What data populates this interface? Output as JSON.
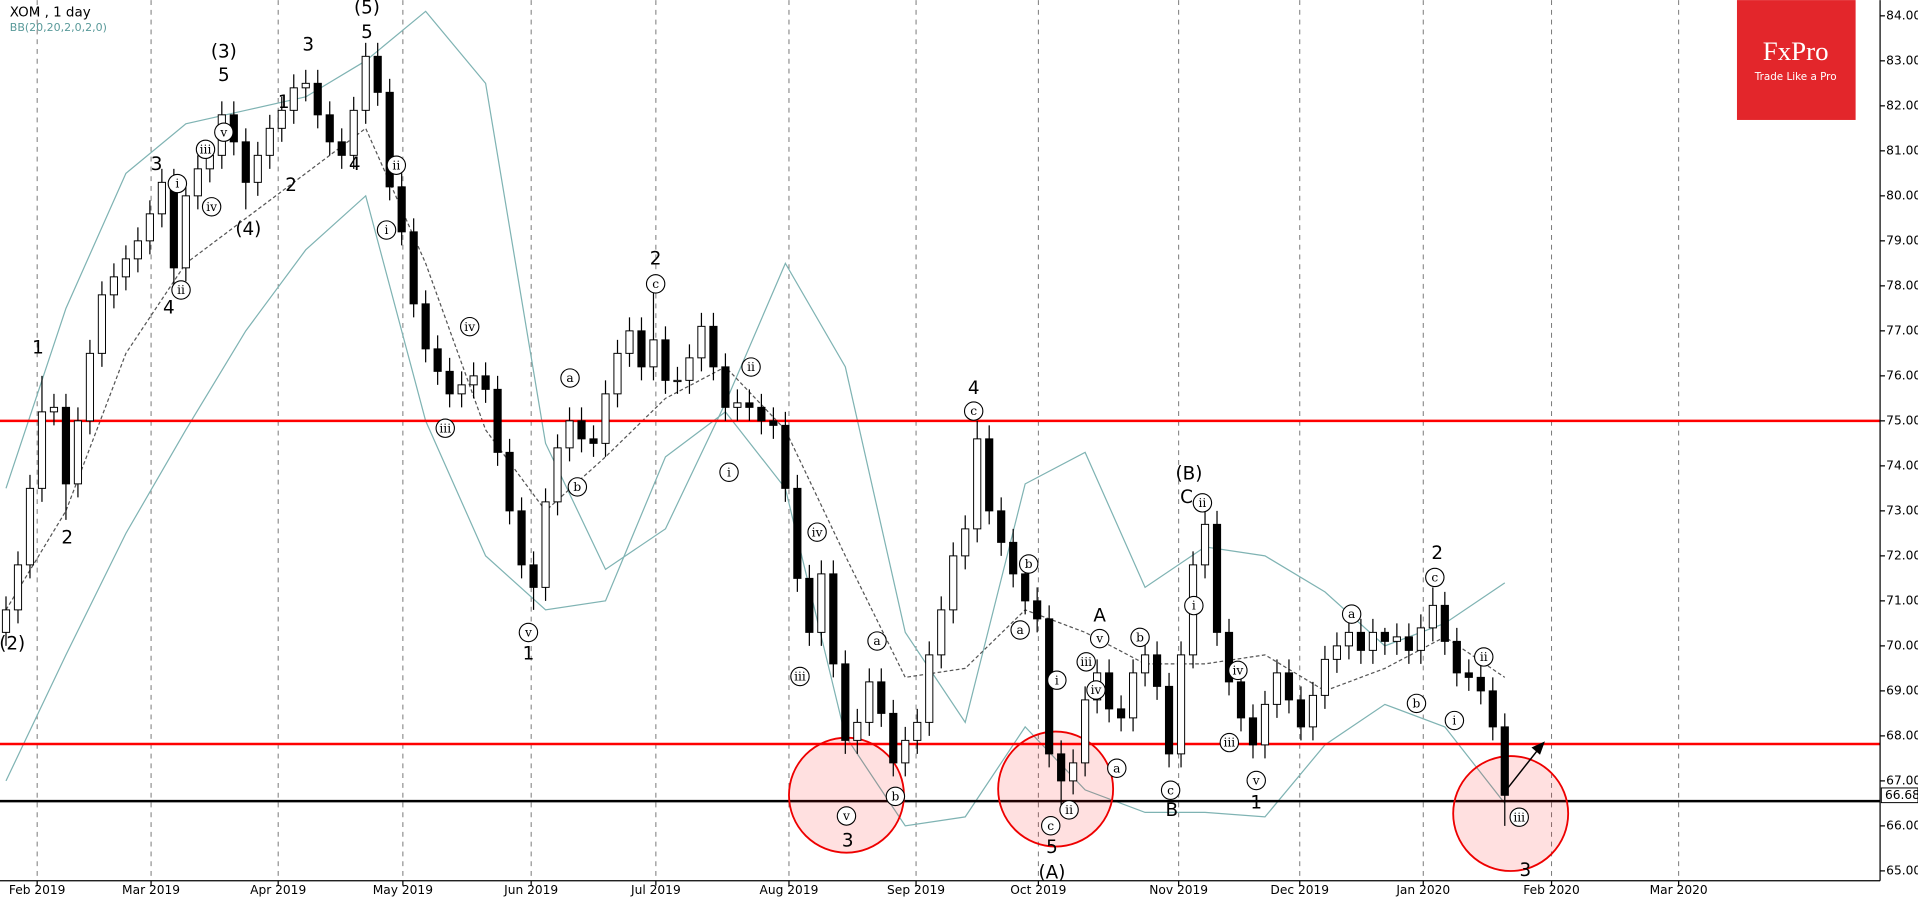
{
  "chart_data": {
    "type": "candlestick",
    "title": "XOM , 1 day",
    "subtitle": "BB(20,20,2,0,2,0)",
    "xlim": [
      -0.5,
      156.3
    ],
    "ylim": [
      64.78,
      84.35
    ],
    "yticks": [
      {
        "value": 65,
        "label": "65.00"
      },
      {
        "value": 66,
        "label": "66.00"
      },
      {
        "value": 67,
        "label": "67.00"
      },
      {
        "value": 68,
        "label": "68.00"
      },
      {
        "value": 69,
        "label": "69.00"
      },
      {
        "value": 70,
        "label": "70.00"
      },
      {
        "value": 71,
        "label": "71.00"
      },
      {
        "value": 72,
        "label": "72.00"
      },
      {
        "value": 73,
        "label": "73.00"
      },
      {
        "value": 74,
        "label": "74.00"
      },
      {
        "value": 75,
        "label": "75.00"
      },
      {
        "value": 76,
        "label": "76.00"
      },
      {
        "value": 77,
        "label": "77.00"
      },
      {
        "value": 78,
        "label": "78.00"
      },
      {
        "value": 79,
        "label": "79.00"
      },
      {
        "value": 80,
        "label": "80.00"
      },
      {
        "value": 81,
        "label": "81.00"
      },
      {
        "value": 82,
        "label": "82.00"
      },
      {
        "value": 83,
        "label": "83.00"
      },
      {
        "value": 84,
        "label": "84.00"
      }
    ],
    "xticks": [
      {
        "value": 2.6,
        "label": "Feb 2019"
      },
      {
        "value": 12.1,
        "label": "Mar 2019"
      },
      {
        "value": 22.7,
        "label": "Apr 2019"
      },
      {
        "value": 33.1,
        "label": "May 2019"
      },
      {
        "value": 43.8,
        "label": "Jun 2019"
      },
      {
        "value": 54.2,
        "label": "Jul 2019"
      },
      {
        "value": 65.3,
        "label": "Aug 2019"
      },
      {
        "value": 75.9,
        "label": "Sep 2019"
      },
      {
        "value": 86.1,
        "label": "Oct 2019"
      },
      {
        "value": 97.8,
        "label": "Nov 2019"
      },
      {
        "value": 107.9,
        "label": "Dec 2019"
      },
      {
        "value": 118.2,
        "label": "Jan 2020"
      },
      {
        "value": 128.9,
        "label": "Feb 2020"
      },
      {
        "value": 139.5,
        "label": "Mar 2020"
      }
    ],
    "grid": true,
    "up_color": "#ffffff",
    "down_color": "#000000",
    "last_price": 66.68,
    "ohlc": [
      [
        70.3,
        71.1,
        70.0,
        70.8
      ],
      [
        70.8,
        72.1,
        70.5,
        71.8
      ],
      [
        71.8,
        73.8,
        71.5,
        73.5
      ],
      [
        73.5,
        76.0,
        73.2,
        75.2
      ],
      [
        75.2,
        75.6,
        74.9,
        75.3
      ],
      [
        75.3,
        75.6,
        72.8,
        73.6
      ],
      [
        73.6,
        75.3,
        73.3,
        75.0
      ],
      [
        75.0,
        76.8,
        74.7,
        76.5
      ],
      [
        76.5,
        78.1,
        76.2,
        77.8
      ],
      [
        77.8,
        78.5,
        77.5,
        78.2
      ],
      [
        78.2,
        78.9,
        77.9,
        78.6
      ],
      [
        78.6,
        79.3,
        78.3,
        79.0
      ],
      [
        79.0,
        79.9,
        78.7,
        79.6
      ],
      [
        79.6,
        80.6,
        79.3,
        80.3
      ],
      [
        80.3,
        80.6,
        77.8,
        78.4
      ],
      [
        78.4,
        80.3,
        78.1,
        80.0
      ],
      [
        80.0,
        80.9,
        79.7,
        80.6
      ],
      [
        80.6,
        81.2,
        80.3,
        80.9
      ],
      [
        80.9,
        82.1,
        80.6,
        81.8
      ],
      [
        81.8,
        82.1,
        80.9,
        81.2
      ],
      [
        81.2,
        81.5,
        79.7,
        80.3
      ],
      [
        80.3,
        81.2,
        80.0,
        80.9
      ],
      [
        80.9,
        81.8,
        80.6,
        81.5
      ],
      [
        81.5,
        82.2,
        81.2,
        81.9
      ],
      [
        81.9,
        82.7,
        81.6,
        82.4
      ],
      [
        82.4,
        82.8,
        82.1,
        82.5
      ],
      [
        82.5,
        82.8,
        81.5,
        81.8
      ],
      [
        81.8,
        82.1,
        80.9,
        81.2
      ],
      [
        81.2,
        81.5,
        80.6,
        80.9
      ],
      [
        80.9,
        82.2,
        80.6,
        81.9
      ],
      [
        81.9,
        83.4,
        81.6,
        83.1
      ],
      [
        83.1,
        83.4,
        82.0,
        82.3
      ],
      [
        82.3,
        82.6,
        79.9,
        80.2
      ],
      [
        80.2,
        80.5,
        78.9,
        79.2
      ],
      [
        79.2,
        79.5,
        77.3,
        77.6
      ],
      [
        77.6,
        77.9,
        76.3,
        76.6
      ],
      [
        76.6,
        76.9,
        75.8,
        76.1
      ],
      [
        76.1,
        76.4,
        75.3,
        75.6
      ],
      [
        75.6,
        76.1,
        75.3,
        75.8
      ],
      [
        75.8,
        76.3,
        75.5,
        76.0
      ],
      [
        76.0,
        76.3,
        75.4,
        75.7
      ],
      [
        75.7,
        76.0,
        74.0,
        74.3
      ],
      [
        74.3,
        74.6,
        72.7,
        73.0
      ],
      [
        73.0,
        73.3,
        71.5,
        71.8
      ],
      [
        71.8,
        72.1,
        70.8,
        71.3
      ],
      [
        71.3,
        73.5,
        71.0,
        73.2
      ],
      [
        73.2,
        74.7,
        72.9,
        74.4
      ],
      [
        74.4,
        75.3,
        74.1,
        75.0
      ],
      [
        75.0,
        75.3,
        74.3,
        74.6
      ],
      [
        74.6,
        74.9,
        74.2,
        74.5
      ],
      [
        74.5,
        75.9,
        74.2,
        75.6
      ],
      [
        75.6,
        76.8,
        75.3,
        76.5
      ],
      [
        76.5,
        77.3,
        76.2,
        77.0
      ],
      [
        77.0,
        77.3,
        75.9,
        76.2
      ],
      [
        76.2,
        78.0,
        75.9,
        76.8
      ],
      [
        76.8,
        77.1,
        75.6,
        75.9
      ],
      [
        75.9,
        76.2,
        75.6,
        75.9
      ],
      [
        75.9,
        76.7,
        75.6,
        76.4
      ],
      [
        76.4,
        77.4,
        76.1,
        77.1
      ],
      [
        77.1,
        77.4,
        75.9,
        76.2
      ],
      [
        76.2,
        76.5,
        75.0,
        75.3
      ],
      [
        75.3,
        75.7,
        75.0,
        75.4
      ],
      [
        75.4,
        75.7,
        75.0,
        75.3
      ],
      [
        75.3,
        75.6,
        74.7,
        75.0
      ],
      [
        75.0,
        75.3,
        74.6,
        74.9
      ],
      [
        74.9,
        75.2,
        73.2,
        73.5
      ],
      [
        73.5,
        73.8,
        71.2,
        71.5
      ],
      [
        71.5,
        71.8,
        70.0,
        70.3
      ],
      [
        70.3,
        71.9,
        70.0,
        71.6
      ],
      [
        71.6,
        71.9,
        69.3,
        69.6
      ],
      [
        69.6,
        69.9,
        67.6,
        67.9
      ],
      [
        67.9,
        68.6,
        67.6,
        68.3
      ],
      [
        68.3,
        69.5,
        68.0,
        69.2
      ],
      [
        69.2,
        69.5,
        68.2,
        68.5
      ],
      [
        68.5,
        68.8,
        67.1,
        67.4
      ],
      [
        67.4,
        68.2,
        67.1,
        67.9
      ],
      [
        67.9,
        68.6,
        67.6,
        68.3
      ],
      [
        68.3,
        70.1,
        68.0,
        69.8
      ],
      [
        69.8,
        71.1,
        69.5,
        70.8
      ],
      [
        70.8,
        72.3,
        70.5,
        72.0
      ],
      [
        72.0,
        72.9,
        71.7,
        72.6
      ],
      [
        72.6,
        75.0,
        72.3,
        74.6
      ],
      [
        74.6,
        74.9,
        72.7,
        73.0
      ],
      [
        73.0,
        73.3,
        72.0,
        72.3
      ],
      [
        72.3,
        72.6,
        71.3,
        71.6
      ],
      [
        71.6,
        71.9,
        70.7,
        71.0
      ],
      [
        71.0,
        71.3,
        70.3,
        70.6
      ],
      [
        70.6,
        70.9,
        67.3,
        67.6
      ],
      [
        67.6,
        67.9,
        66.4,
        67.0
      ],
      [
        67.0,
        67.7,
        66.7,
        67.4
      ],
      [
        67.4,
        69.1,
        67.1,
        68.8
      ],
      [
        68.8,
        69.7,
        68.5,
        69.4
      ],
      [
        69.4,
        69.7,
        68.3,
        68.6
      ],
      [
        68.6,
        68.9,
        68.1,
        68.4
      ],
      [
        68.4,
        69.7,
        68.1,
        69.4
      ],
      [
        69.4,
        70.1,
        69.1,
        69.8
      ],
      [
        69.8,
        70.1,
        68.8,
        69.1
      ],
      [
        69.1,
        69.4,
        67.3,
        67.6
      ],
      [
        67.6,
        70.1,
        67.3,
        69.8
      ],
      [
        69.8,
        72.1,
        69.5,
        71.8
      ],
      [
        71.8,
        73.0,
        71.5,
        72.7
      ],
      [
        72.7,
        73.0,
        70.0,
        70.3
      ],
      [
        70.3,
        70.6,
        68.9,
        69.2
      ],
      [
        69.2,
        69.5,
        68.1,
        68.4
      ],
      [
        68.4,
        68.7,
        67.5,
        67.8
      ],
      [
        67.8,
        69.0,
        67.5,
        68.7
      ],
      [
        68.7,
        69.7,
        68.4,
        69.4
      ],
      [
        69.4,
        69.7,
        68.5,
        68.8
      ],
      [
        68.8,
        69.1,
        67.9,
        68.2
      ],
      [
        68.2,
        69.2,
        67.9,
        68.9
      ],
      [
        68.9,
        70.0,
        68.6,
        69.7
      ],
      [
        69.7,
        70.3,
        69.4,
        70.0
      ],
      [
        70.0,
        70.6,
        69.7,
        70.3
      ],
      [
        70.3,
        70.6,
        69.6,
        69.9
      ],
      [
        69.9,
        70.6,
        69.6,
        70.3
      ],
      [
        70.3,
        70.4,
        69.8,
        70.1
      ],
      [
        70.1,
        70.5,
        69.8,
        70.2
      ],
      [
        70.2,
        70.5,
        69.6,
        69.9
      ],
      [
        69.9,
        70.7,
        69.6,
        70.4
      ],
      [
        70.4,
        71.3,
        70.1,
        70.9
      ],
      [
        70.9,
        71.2,
        69.8,
        70.1
      ],
      [
        70.1,
        70.4,
        69.1,
        69.4
      ],
      [
        69.4,
        69.7,
        69.0,
        69.3
      ],
      [
        69.3,
        69.6,
        68.7,
        69.0
      ],
      [
        69.0,
        69.3,
        67.9,
        68.2
      ],
      [
        68.2,
        68.5,
        66.0,
        66.68
      ]
    ],
    "bands": {
      "x": [
        0,
        5,
        10,
        15,
        20,
        25,
        30,
        35,
        40,
        45,
        50,
        55,
        60,
        65,
        70,
        75,
        80,
        85,
        90,
        95,
        100,
        105,
        110,
        115,
        120,
        125
      ],
      "series": [
        {
          "color": "#7fb3b3",
          "values": [
            73.5,
            77.5,
            80.5,
            81.6,
            81.9,
            82.2,
            83.0,
            84.1,
            82.5,
            74.5,
            71.7,
            72.6,
            75.4,
            78.5,
            76.2,
            70.3,
            68.3,
            73.6,
            74.3,
            71.3,
            72.2,
            72.0,
            71.2,
            70.0,
            70.5,
            71.4
          ]
        },
        {
          "color": "#555555",
          "dashed": true,
          "values": [
            70.8,
            73.0,
            76.5,
            78.5,
            79.5,
            80.5,
            81.5,
            78.5,
            74.8,
            73.0,
            74.2,
            75.5,
            76.2,
            74.8,
            72.0,
            69.3,
            69.5,
            70.8,
            70.3,
            69.6,
            69.6,
            69.8,
            69.0,
            69.5,
            70.2,
            69.3
          ]
        },
        {
          "color": "#7fb3b3",
          "values": [
            67.0,
            69.8,
            72.5,
            74.8,
            77.0,
            78.8,
            80.0,
            75.0,
            72.0,
            70.8,
            71.0,
            74.2,
            75.2,
            73.5,
            68.0,
            66.0,
            66.2,
            68.2,
            66.8,
            66.3,
            66.3,
            66.2,
            67.8,
            68.7,
            68.2,
            66.5
          ]
        }
      ]
    },
    "hlines": [
      {
        "value": 75.0,
        "color": "#ff0000"
      },
      {
        "value": 67.82,
        "color": "#ff0000"
      },
      {
        "value": 66.55,
        "color": "#000000"
      }
    ],
    "annotations": [
      "(2)",
      "1",
      "2",
      "3",
      "4",
      "i",
      "ii",
      "iii",
      "iv",
      "v",
      "5",
      "(3)",
      "(4)",
      "1",
      "3",
      "2",
      "4",
      "5",
      "(5)",
      "ii",
      "i",
      "iv",
      "iii",
      "v",
      "1",
      "a",
      "b",
      "2",
      "c",
      "ii",
      "i",
      "iv",
      "iii",
      "a",
      "v",
      "3",
      "b",
      "4",
      "c",
      "b",
      "a",
      "A",
      "v",
      "i",
      "iii",
      "iv",
      "ii",
      "c",
      "5",
      "(A)",
      "b",
      "a",
      "c",
      "B",
      "(B)",
      "C",
      "ii",
      "i",
      "iv",
      "iii",
      "v",
      "1",
      "a",
      "b",
      "2",
      "c",
      "i",
      "ii",
      "iii",
      "3"
    ]
  },
  "logo": {
    "name": "FxPro",
    "tagline": "Trade Like a Pro"
  }
}
